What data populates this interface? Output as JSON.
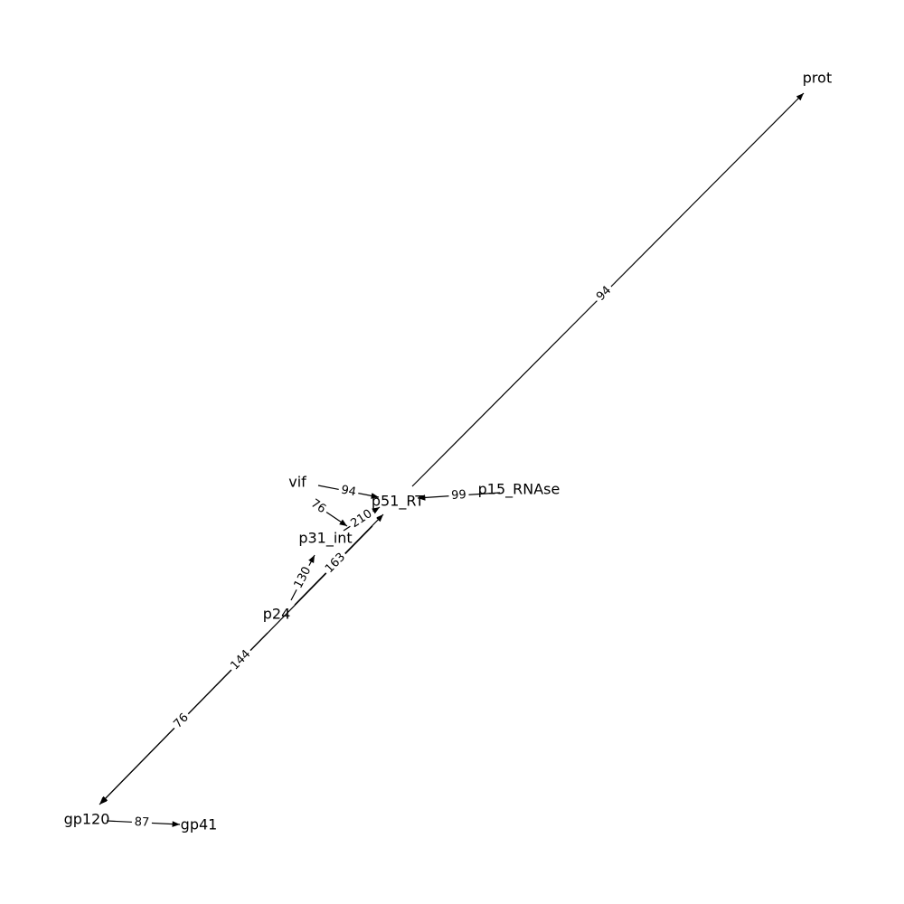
{
  "nodes": [
    {
      "id": "prot",
      "label": "prot"
    },
    {
      "id": "vif",
      "label": "vif"
    },
    {
      "id": "p51_RT",
      "label": "p51_RT"
    },
    {
      "id": "p15_RNAse",
      "label": "p15_RNAse"
    },
    {
      "id": "p31_int",
      "label": "p31_int"
    },
    {
      "id": "p24",
      "label": "p24"
    },
    {
      "id": "gp120",
      "label": "gp120"
    },
    {
      "id": "gp41",
      "label": "gp41"
    }
  ],
  "edges": [
    {
      "source": "p51_RT",
      "target": "prot",
      "label": "94"
    },
    {
      "source": "vif",
      "target": "p51_RT",
      "label": "94"
    },
    {
      "source": "p15_RNAse",
      "target": "p51_RT",
      "label": "99"
    },
    {
      "source": "vif",
      "target": "p31_int",
      "label": "76"
    },
    {
      "source": "p31_int",
      "target": "p51_RT",
      "label": "210"
    },
    {
      "source": "p24",
      "target": "p51_RT",
      "label": "163"
    },
    {
      "source": "p24",
      "target": "p31_int",
      "label": "130"
    },
    {
      "source": "p24",
      "target": "gp120",
      "label": "144"
    },
    {
      "source": "p31_int",
      "target": "gp120",
      "label": "76"
    },
    {
      "source": "gp120",
      "target": "gp41",
      "label": "87"
    }
  ]
}
